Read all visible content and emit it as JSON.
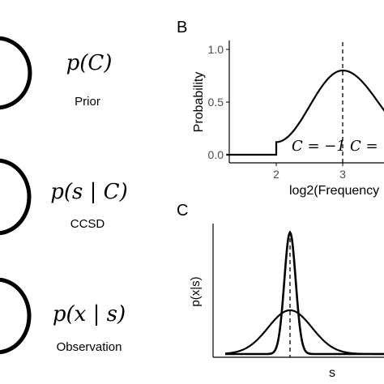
{
  "left_panel": {
    "nodes": [
      {
        "formula": "p(C)",
        "label": "Prior"
      },
      {
        "formula": "p(s | C)",
        "label": "CCSD"
      },
      {
        "formula": "p(x | s)",
        "label": "Observation"
      }
    ]
  },
  "panel_b": {
    "letter": "B",
    "chart_data": {
      "type": "line",
      "ylabel": "Probability",
      "xlabel": "log2(Frequency",
      "xlim": [
        1.5,
        4.2
      ],
      "ylim": [
        0,
        1.0
      ],
      "x_ticks": [
        "2",
        "3"
      ],
      "y_ticks": [
        "0.0",
        "0.5",
        "1.0"
      ],
      "dashed_line_x": 3,
      "curve": {
        "flat_value": 0.0,
        "step_x": 2,
        "step_value": 0.12,
        "peak_x": 3,
        "peak_value": 0.8
      },
      "annotations": [
        "C = −1",
        "C ="
      ]
    }
  },
  "panel_c": {
    "letter": "C",
    "chart_data": {
      "type": "line",
      "ylabel": "p(x|s)",
      "xlabel": "s",
      "dashed_line": "s",
      "series": [
        {
          "shape": "narrow",
          "peak": 1.0
        },
        {
          "shape": "wide",
          "peak": 0.36
        }
      ]
    }
  }
}
